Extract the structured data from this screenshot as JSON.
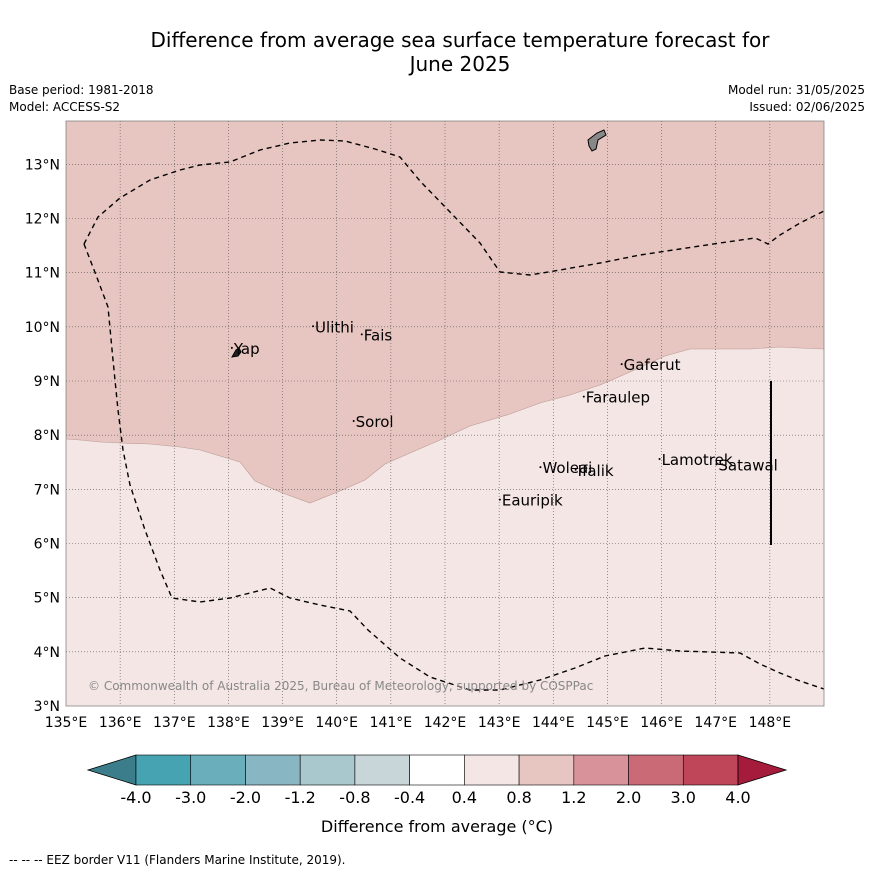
{
  "title_line1": "Difference from average sea surface temperature forecast for",
  "title_line2": "June 2025",
  "base_period": "Base period: 1981-2018",
  "model": "Model: ACCESS-S2",
  "model_run": "Model run: 31/05/2025",
  "issued": "Issued: 02/06/2025",
  "copyright": "© Commonwealth of Australia 2025, Bureau of Meteorology, supported by COSPPac",
  "footnote": "-- -- -- EEZ border V11 (Flanders Marine Institute, 2019).",
  "map": {
    "lon_range": [
      135,
      149
    ],
    "lat_range": [
      3,
      13.8
    ],
    "lon_ticks": [
      "135°E",
      "136°E",
      "137°E",
      "138°E",
      "139°E",
      "140°E",
      "141°E",
      "142°E",
      "143°E",
      "144°E",
      "145°E",
      "146°E",
      "147°E",
      "148°E"
    ],
    "lat_ticks": [
      "3°N",
      "4°N",
      "5°N",
      "6°N",
      "7°N",
      "8°N",
      "9°N",
      "10°N",
      "11°N",
      "12°N",
      "13°N"
    ],
    "places": [
      {
        "name": "Yap",
        "lon": 138.1,
        "lat": 9.5
      },
      {
        "name": "Ulithi",
        "lon": 139.6,
        "lat": 9.9
      },
      {
        "name": "Fais",
        "lon": 140.5,
        "lat": 9.75
      },
      {
        "name": "Gaferut",
        "lon": 145.3,
        "lat": 9.2
      },
      {
        "name": "Faraulep",
        "lon": 144.6,
        "lat": 8.6
      },
      {
        "name": "Sorol",
        "lon": 140.35,
        "lat": 8.15
      },
      {
        "name": "Lamotrek",
        "lon": 146.0,
        "lat": 7.45
      },
      {
        "name": "Woleai",
        "lon": 143.8,
        "lat": 7.3
      },
      {
        "name": "Ifalik",
        "lon": 144.45,
        "lat": 7.25
      },
      {
        "name": "Satawal",
        "lon": 147.05,
        "lat": 7.35
      },
      {
        "name": "Eauripik",
        "lon": 143.05,
        "lat": 6.7
      }
    ]
  },
  "colorbar": {
    "label": "Difference from average (°C)",
    "ticks": [
      "-4.0",
      "-3.0",
      "-2.0",
      "-1.2",
      "-0.8",
      "-0.4",
      "0.4",
      "0.8",
      "1.2",
      "2.0",
      "3.0",
      "4.0"
    ],
    "colors": {
      "under": "#3b7d8a",
      "bins": [
        "#46a3b2",
        "#6aaebc",
        "#88b6c2",
        "#a9c8cd",
        "#c8d6da",
        "#ffffff",
        "#f4e6e4",
        "#e7c5c0",
        "#d8929a",
        "#cb6a77",
        "#bf4558"
      ],
      "over": "#a51b3c"
    }
  },
  "colors": {
    "warm_fill": "#e7c5c0",
    "light_fill": "#f4e6e4"
  }
}
